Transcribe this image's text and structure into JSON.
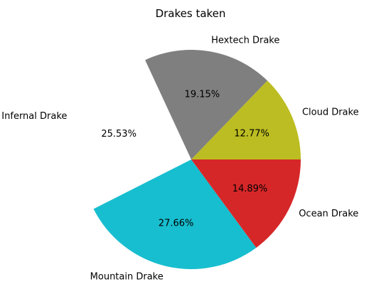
{
  "chart_data": {
    "type": "pie",
    "title": "Drakes taken",
    "slices": [
      {
        "label": "Cloud Drake",
        "value": 12.77,
        "pct_label": "12.77%",
        "color": "#bcbd22"
      },
      {
        "label": "Hextech Drake",
        "value": 19.15,
        "pct_label": "19.15%",
        "color": "#7f7f7f"
      },
      {
        "label": "Infernal Drake",
        "value": 25.53,
        "pct_label": "25.53%",
        "color": "#ffffff",
        "exploded": true
      },
      {
        "label": "Mountain Drake",
        "value": 27.66,
        "pct_label": "27.66%",
        "color": "#17becf"
      },
      {
        "label": "Ocean Drake",
        "value": 14.89,
        "pct_label": "14.89%",
        "color": "#d62728"
      }
    ]
  }
}
